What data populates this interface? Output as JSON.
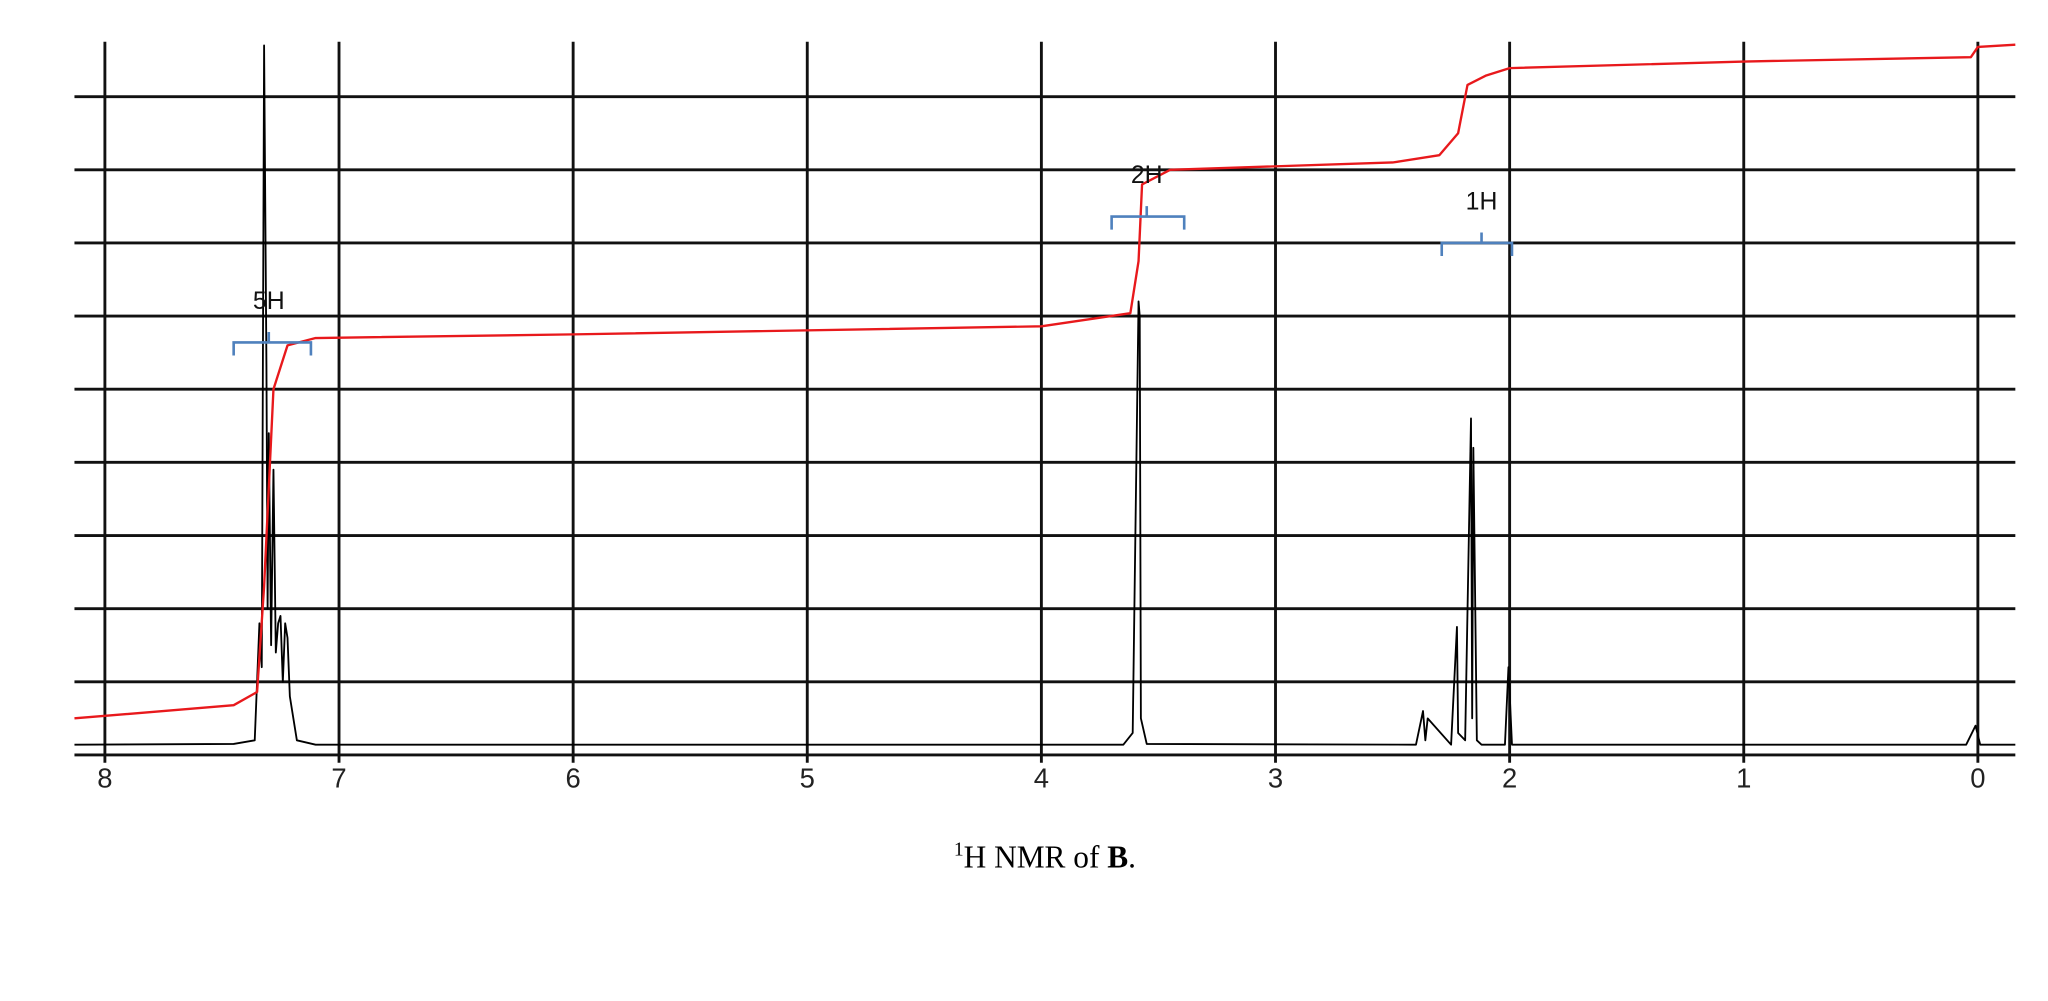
{
  "chart_data": {
    "type": "line",
    "xlim": [
      8.13,
      -0.16
    ],
    "xticks": [
      8,
      7,
      6,
      5,
      4,
      3,
      2,
      1,
      0
    ],
    "ylim": [
      0,
      9.75
    ],
    "yticks": [
      1,
      2,
      3,
      4,
      5,
      6,
      7,
      8,
      9
    ],
    "grid": true,
    "series": [
      {
        "color": "#000000",
        "x": [
          8.13,
          7.45,
          7.36,
          7.34,
          7.33,
          7.32,
          7.31,
          7.305,
          7.3,
          7.29,
          7.28,
          7.27,
          7.26,
          7.25,
          7.24,
          7.23,
          7.22,
          7.21,
          7.2,
          7.18,
          7.1,
          3.65,
          3.61,
          3.585,
          3.58,
          3.575,
          3.55,
          2.4,
          2.37,
          2.36,
          2.35,
          2.25,
          2.225,
          2.22,
          2.19,
          2.165,
          2.16,
          2.155,
          2.14,
          2.12,
          2.02,
          2.005,
          1.99,
          0.05,
          0.01,
          -0.01,
          -0.16
        ],
        "values": [
          0.14,
          0.15,
          0.2,
          1.8,
          1.2,
          9.7,
          5.3,
          2.0,
          4.4,
          1.5,
          3.9,
          1.4,
          1.8,
          1.9,
          1.0,
          1.8,
          1.6,
          0.8,
          0.6,
          0.2,
          0.14,
          0.14,
          0.3,
          6.2,
          6.0,
          0.5,
          0.15,
          0.14,
          0.6,
          0.2,
          0.5,
          0.14,
          1.75,
          0.3,
          0.2,
          4.6,
          0.5,
          4.2,
          0.2,
          0.14,
          0.14,
          1.2,
          0.14,
          0.14,
          0.4,
          0.14,
          0.14
        ]
      },
      {
        "color": "#e8191c",
        "x": [
          8.13,
          7.45,
          7.35,
          7.32,
          7.28,
          7.22,
          7.1,
          6.0,
          4.0,
          3.62,
          3.585,
          3.57,
          3.45,
          2.5,
          2.3,
          2.22,
          2.18,
          2.1,
          2.0,
          1.0,
          0.03,
          0.0,
          -0.16
        ],
        "values": [
          0.5,
          0.68,
          0.86,
          2.3,
          5.0,
          5.6,
          5.7,
          5.75,
          5.86,
          6.04,
          6.75,
          7.8,
          8.0,
          8.1,
          8.2,
          8.5,
          9.16,
          9.29,
          9.39,
          9.48,
          9.54,
          9.68,
          9.71
        ]
      }
    ],
    "annotations": [
      {
        "text": "5H",
        "x": 7.3,
        "y": 6.1,
        "from": 7.45,
        "to": 7.12,
        "bracket_y": 5.64
      },
      {
        "text": "2H",
        "x": 3.55,
        "y": 7.82,
        "from": 3.7,
        "to": 3.39,
        "bracket_y": 7.36
      },
      {
        "text": "1H",
        "x": 2.12,
        "y": 7.46,
        "from": 2.29,
        "to": 1.99,
        "bracket_y": 7.0
      }
    ],
    "caption": [
      "1",
      "H NMR of ",
      "B",
      "."
    ]
  }
}
